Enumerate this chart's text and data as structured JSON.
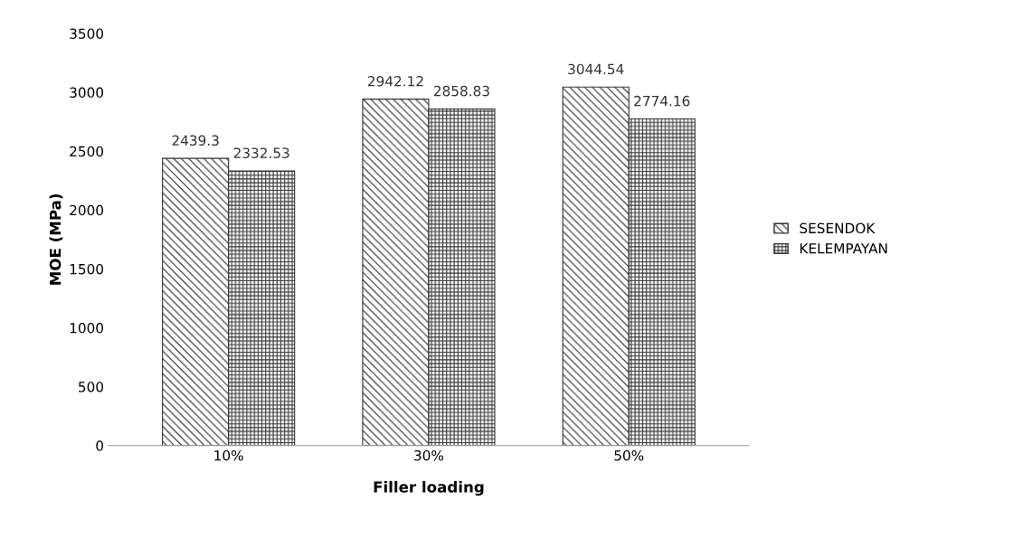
{
  "chart_data": {
    "type": "bar",
    "xlabel": "Filler loading",
    "ylabel": "MOE (MPa)",
    "categories": [
      "10%",
      "30%",
      "50%"
    ],
    "series": [
      {
        "name": "SESENDOK",
        "color": "#333333",
        "values": [
          2439.3,
          2942.12,
          3044.54
        ]
      },
      {
        "name": "KELEMPAYAN",
        "color": "#333333",
        "values": [
          2332.53,
          2858.83,
          2774.16
        ]
      }
    ],
    "ylim": [
      0,
      3500
    ],
    "yticks": [
      0,
      500,
      1000,
      1500,
      2000,
      2500,
      3000,
      3500
    ],
    "data_labels": true,
    "legend": "right",
    "grid": false
  }
}
